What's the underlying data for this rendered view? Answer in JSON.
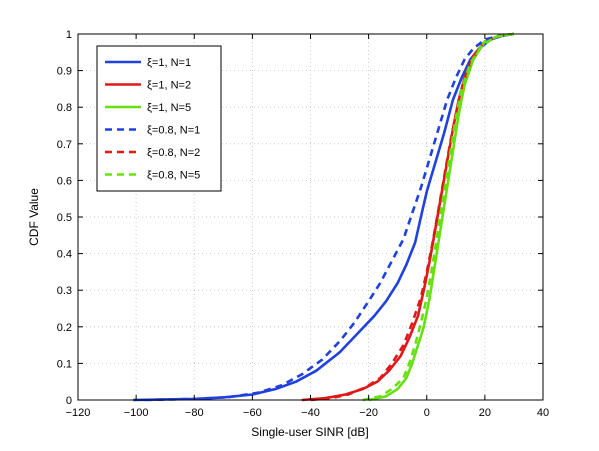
{
  "chart_data": {
    "type": "line",
    "title": "",
    "xlabel": "Single-user SINR [dB]",
    "ylabel": "CDF Value",
    "xlim": [
      -120,
      40
    ],
    "ylim": [
      0,
      1
    ],
    "xticks": [
      -120,
      -100,
      -80,
      -60,
      -40,
      -20,
      0,
      20,
      40
    ],
    "yticks": [
      0,
      0.1,
      0.2,
      0.3,
      0.4,
      0.5,
      0.6,
      0.7,
      0.8,
      0.9,
      1
    ],
    "grid": true,
    "legend_position": "top-left",
    "series": [
      {
        "name": "ξ=1, N=1",
        "color": "#2040e0",
        "style": "solid",
        "x": [
          -101,
          -80,
          -70,
          -60,
          -52,
          -45,
          -38,
          -30,
          -24,
          -18,
          -14,
          -10,
          -7,
          -4,
          -2,
          0,
          3,
          6,
          9,
          12,
          15,
          18,
          22,
          26,
          30
        ],
        "y": [
          0,
          0.003,
          0.007,
          0.015,
          0.03,
          0.05,
          0.08,
          0.13,
          0.18,
          0.23,
          0.27,
          0.32,
          0.37,
          0.43,
          0.5,
          0.57,
          0.65,
          0.73,
          0.82,
          0.88,
          0.93,
          0.96,
          0.985,
          0.995,
          1.0
        ]
      },
      {
        "name": "ξ=1, N=2",
        "color": "#e01818",
        "style": "solid",
        "x": [
          -43,
          -35,
          -28,
          -22,
          -17,
          -13,
          -9,
          -6,
          -3,
          -1,
          1,
          3,
          5,
          7,
          9,
          11,
          13,
          16,
          20,
          25,
          30
        ],
        "y": [
          0,
          0.005,
          0.015,
          0.03,
          0.05,
          0.08,
          0.12,
          0.17,
          0.23,
          0.3,
          0.38,
          0.47,
          0.56,
          0.65,
          0.74,
          0.82,
          0.88,
          0.94,
          0.98,
          0.995,
          1.0
        ]
      },
      {
        "name": "ξ=1, N=5",
        "color": "#66e010",
        "style": "solid",
        "x": [
          -20,
          -14,
          -10,
          -7,
          -5,
          -3,
          -1,
          1,
          3,
          5,
          7,
          9,
          11,
          13,
          16,
          20,
          25,
          30
        ],
        "y": [
          0,
          0.01,
          0.03,
          0.06,
          0.1,
          0.15,
          0.2,
          0.28,
          0.38,
          0.48,
          0.58,
          0.68,
          0.78,
          0.86,
          0.93,
          0.98,
          0.995,
          1.0
        ]
      },
      {
        "name": "ξ=0.8, N=1",
        "color": "#2040e0",
        "style": "dashed",
        "x": [
          -97,
          -80,
          -68,
          -58,
          -50,
          -43,
          -36,
          -30,
          -25,
          -20,
          -16,
          -12,
          -8,
          -5,
          -2,
          1,
          4,
          7,
          10,
          13,
          16,
          20,
          25,
          30
        ],
        "y": [
          0,
          0.003,
          0.008,
          0.02,
          0.04,
          0.07,
          0.11,
          0.16,
          0.21,
          0.27,
          0.32,
          0.38,
          0.44,
          0.51,
          0.58,
          0.66,
          0.74,
          0.82,
          0.88,
          0.93,
          0.96,
          0.985,
          0.995,
          1.0
        ]
      },
      {
        "name": "ξ=0.8, N=2",
        "color": "#e01818",
        "style": "dashed",
        "x": [
          -40,
          -33,
          -27,
          -21,
          -16,
          -12,
          -8,
          -5,
          -2,
          0,
          2,
          4,
          6,
          8,
          10,
          12,
          15,
          19,
          24,
          30
        ],
        "y": [
          0,
          0.005,
          0.015,
          0.035,
          0.06,
          0.1,
          0.15,
          0.21,
          0.28,
          0.35,
          0.43,
          0.52,
          0.61,
          0.7,
          0.78,
          0.85,
          0.92,
          0.97,
          0.993,
          1.0
        ]
      },
      {
        "name": "ξ=0.8, N=5",
        "color": "#66e010",
        "style": "dashed",
        "x": [
          -22,
          -16,
          -12,
          -8,
          -6,
          -4,
          -2,
          0,
          2,
          4,
          6,
          8,
          10,
          12,
          15,
          19,
          24,
          30
        ],
        "y": [
          0,
          0.01,
          0.03,
          0.06,
          0.1,
          0.15,
          0.21,
          0.28,
          0.37,
          0.47,
          0.57,
          0.67,
          0.77,
          0.85,
          0.92,
          0.97,
          0.993,
          1.0
        ]
      }
    ]
  }
}
